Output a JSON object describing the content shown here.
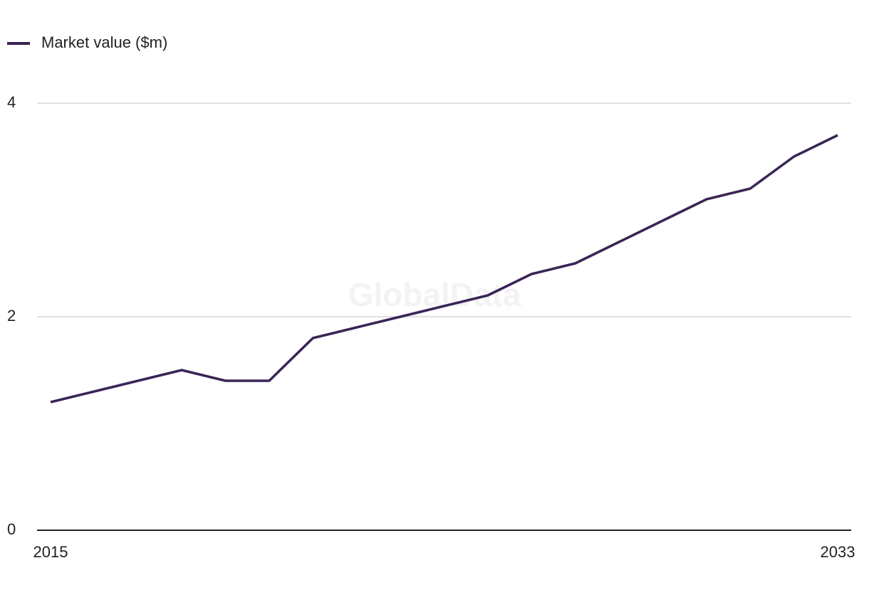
{
  "chart_data": {
    "type": "line",
    "watermark": "GlobalData",
    "categories": [
      "2015",
      null,
      null,
      null,
      null,
      null,
      null,
      null,
      null,
      null,
      null,
      null,
      null,
      null,
      null,
      null,
      null,
      null,
      "2033"
    ],
    "series": [
      {
        "name": "Market value ($m)",
        "color": "#3a2456",
        "values": [
          1.2,
          1.3,
          1.4,
          1.5,
          1.4,
          1.4,
          1.8,
          1.9,
          2.0,
          2.1,
          2.2,
          2.4,
          2.5,
          2.7,
          2.9,
          3.1,
          3.2,
          3.5,
          3.7
        ]
      }
    ],
    "ylim": [
      0,
      4
    ],
    "yticks": [
      0,
      2,
      4
    ],
    "grid": true,
    "legend": "top-left"
  }
}
